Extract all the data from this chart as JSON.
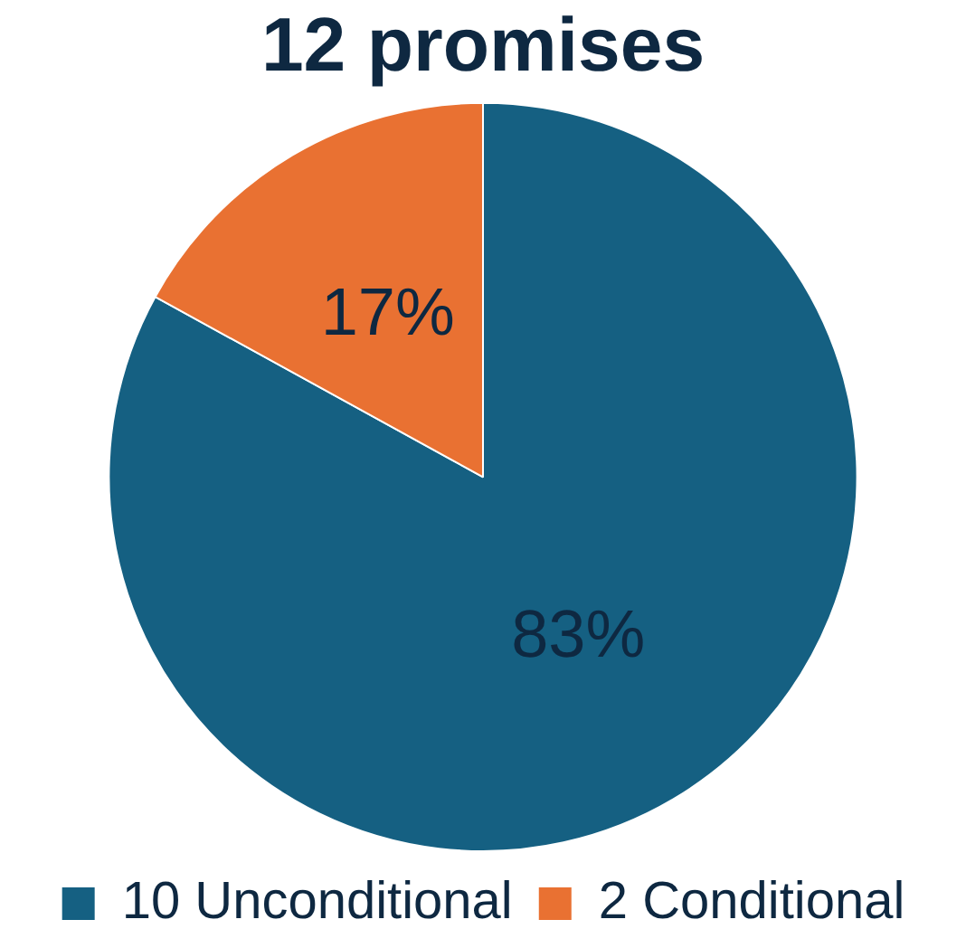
{
  "chart_data": {
    "type": "pie",
    "title": "12 promises",
    "categories": [
      "10 Unconditional",
      "2 Conditional"
    ],
    "values": [
      83,
      17
    ],
    "colors": [
      "#156082",
      "#e97132"
    ],
    "value_labels": [
      "83%",
      "17%"
    ],
    "legend": "bottom"
  }
}
